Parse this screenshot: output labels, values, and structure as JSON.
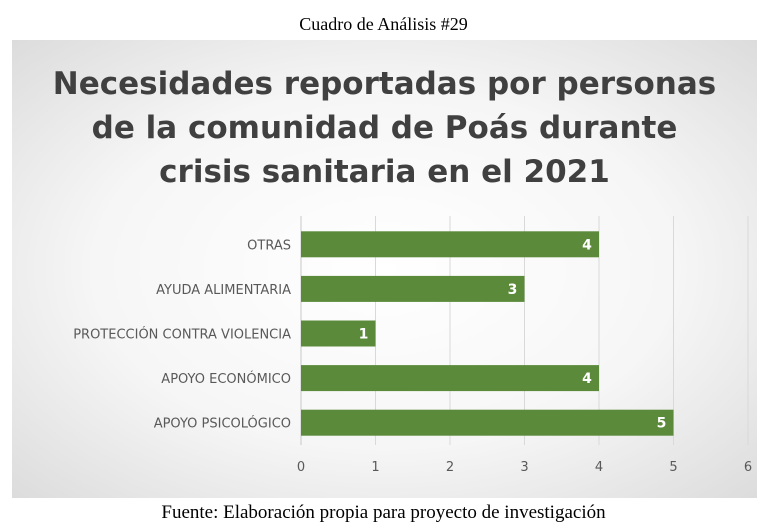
{
  "caption_top": "Cuadro de Análisis #29",
  "caption_bottom": "Fuente: Elaboración propia para proyecto de investigación",
  "chart_data": {
    "type": "bar",
    "orientation": "horizontal",
    "title_lines": [
      "Necesidades reportadas por personas",
      "de la comunidad de Poás durante",
      "crisis sanitaria en el 2021"
    ],
    "categories": [
      "OTRAS",
      "AYUDA ALIMENTARIA",
      "PROTECCIÓN CONTRA VIOLENCIA",
      "APOYO ECONÓMICO",
      "APOYO PSICOLÓGICO"
    ],
    "values": [
      4,
      3,
      1,
      4,
      5
    ],
    "xlim": [
      0,
      6
    ],
    "xticks": [
      "0",
      "1",
      "2",
      "3",
      "4",
      "5",
      "6"
    ],
    "grid": true,
    "data_labels": true,
    "bar_color": "#5b8a3a",
    "label_color": "#ffffff"
  }
}
